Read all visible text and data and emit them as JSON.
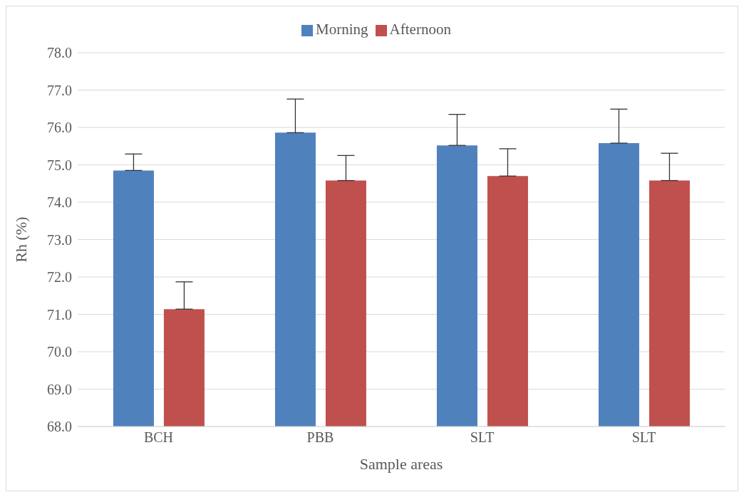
{
  "chart_data": {
    "type": "bar",
    "xlabel": "Sample areas",
    "ylabel": "Rh (%)",
    "categories": [
      "BCH",
      "PBB",
      "SLT",
      "SLT"
    ],
    "series": [
      {
        "name": "Morning",
        "color": "#4f81bd",
        "values": [
          74.85,
          75.86,
          75.52,
          75.58
        ],
        "errors": [
          [
            74.85,
            75.29
          ],
          [
            75.86,
            76.76
          ],
          [
            75.52,
            76.35
          ],
          [
            75.58,
            76.49
          ]
        ]
      },
      {
        "name": "Afternoon",
        "color": "#c0504d",
        "values": [
          71.14,
          74.58,
          74.7,
          74.58
        ],
        "errors": [
          [
            71.14,
            71.87
          ],
          [
            74.58,
            75.25
          ],
          [
            74.7,
            75.43
          ],
          [
            74.58,
            75.31
          ]
        ]
      }
    ],
    "ylim": [
      68,
      78
    ],
    "yticks": [
      {
        "value": 68,
        "label": "68.0"
      },
      {
        "value": 69,
        "label": "69.0"
      },
      {
        "value": 70,
        "label": "70.0"
      },
      {
        "value": 71,
        "label": "71.0"
      },
      {
        "value": 72,
        "label": "72.0"
      },
      {
        "value": 73,
        "label": "73.0"
      },
      {
        "value": 74,
        "label": "74.0"
      },
      {
        "value": 75,
        "label": "75.0"
      },
      {
        "value": 76,
        "label": "76.0"
      },
      {
        "value": 77,
        "label": "77.0"
      },
      {
        "value": 78,
        "label": "78.0"
      }
    ],
    "grid": "y",
    "legend": "top"
  }
}
